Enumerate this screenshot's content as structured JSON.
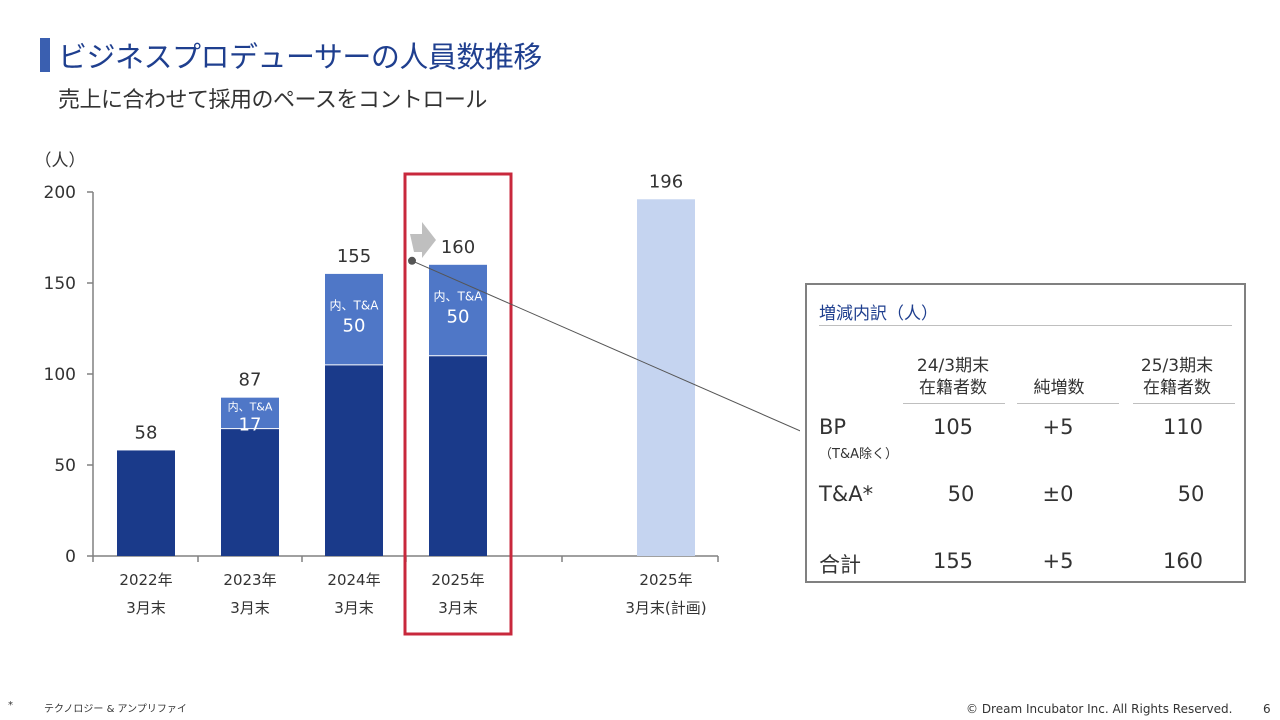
{
  "header": {
    "title": "ビジネスプロデューサーの人員数推移",
    "subtitle": "売上に合わせて採用のペースをコントロール"
  },
  "chart_data": {
    "type": "bar",
    "stacked": true,
    "unit_label": "（人）",
    "ylim": [
      0,
      200
    ],
    "y_ticks": [
      "0",
      "50",
      "100",
      "150",
      "200"
    ],
    "categories": [
      {
        "line1": "2022年",
        "line2": "3月末"
      },
      {
        "line1": "2023年",
        "line2": "3月末"
      },
      {
        "line1": "2024年",
        "line2": "3月末"
      },
      {
        "line1": "2025年",
        "line2": "3月末"
      },
      {
        "line1": "2025年",
        "line2": "3月末(計画)"
      }
    ],
    "series": [
      {
        "values": [
          58,
          70,
          105,
          110,
          196
        ]
      },
      {
        "values": [
          0,
          17,
          50,
          50,
          0
        ]
      }
    ],
    "totals": [
      "58",
      "87",
      "155",
      "160",
      "196"
    ],
    "segment_labels": [
      null,
      {
        "line1": "内、T&A",
        "line2": "17"
      },
      {
        "line1": "内、T&A",
        "line2": "50"
      },
      {
        "line1": "内、T&A",
        "line2": "50"
      },
      null
    ],
    "highlight_index": 3,
    "colors": {
      "base": "#1a3a8a",
      "ta": "#4f77c7",
      "plan": "#c5d4f0",
      "highlight": "#c8283c",
      "arrow": "#bfbfbf"
    }
  },
  "breakdown": {
    "title": "増減内訳（人）",
    "col_start_l1": "24/3期末",
    "col_start_l2": "在籍者数",
    "col_change": "純増数",
    "col_end_l1": "25/3期末",
    "col_end_l2": "在籍者数",
    "rows": [
      {
        "label": "BP",
        "sub": "（T&A除く）",
        "start": "105",
        "change": "+5",
        "end": "110"
      },
      {
        "label": "T&A*",
        "sub": "",
        "start": "50",
        "change": "±0",
        "end": "50"
      },
      {
        "label": "合計",
        "sub": "",
        "start": "155",
        "change": "+5",
        "end": "160"
      }
    ]
  },
  "footer": {
    "footnote_mark": "*",
    "footnote_text": "テクノロジー & アンプリファイ",
    "copyright": "© Dream Incubator Inc. All Rights Reserved.",
    "page": "6"
  }
}
